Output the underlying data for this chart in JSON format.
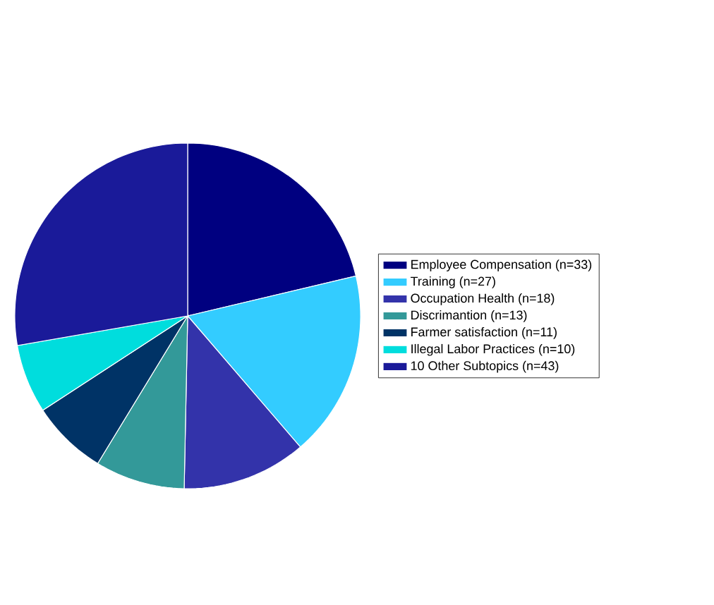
{
  "chart_data": {
    "type": "pie",
    "categories": [
      "Employee Compensation (n=33)",
      "Training (n=27)",
      "Occupation Health (n=18)",
      "Discrimantion (n=13)",
      "Farmer satisfaction (n=11)",
      "Illegal Labor Practices (n=10)",
      "10 Other Subtopics (n=43)"
    ],
    "values": [
      33,
      27,
      18,
      13,
      11,
      10,
      43
    ],
    "colors": [
      "#000080",
      "#33ccff",
      "#3333aa",
      "#339999",
      "#003366",
      "#00dddd",
      "#1a1a99"
    ],
    "legend": "right"
  }
}
